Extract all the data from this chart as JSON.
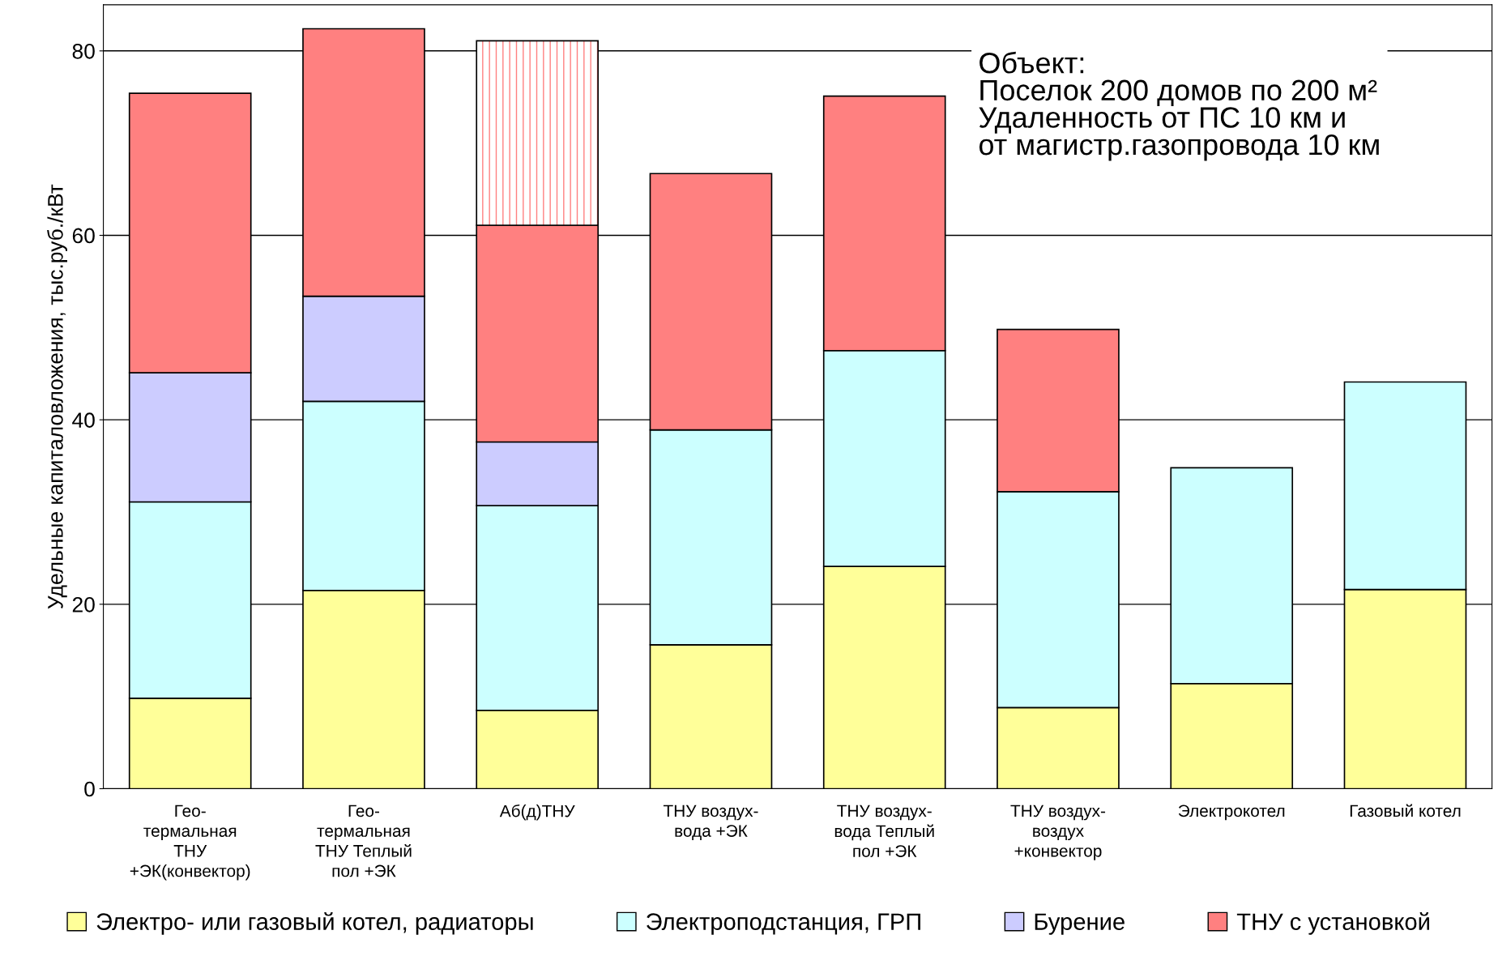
{
  "chart_data": {
    "type": "bar",
    "stacked": true,
    "ylabel": "Удельные капиталовложения, тыс.руб./кВт",
    "categories": [
      "Гео-\nтермальная\nТНУ\n+ЭК(конвектор)",
      "Гео-\nтермальная\nТНУ Теплый\nпол +ЭК",
      "Аб(д)ТНУ",
      "ТНУ воздух-\nвода +ЭК",
      "ТНУ воздух-\nвода Теплый\nпол +ЭК",
      "ТНУ воздух-\nвоздух\n+конвектор",
      "Электрокотел",
      "Газовый котел"
    ],
    "series": [
      {
        "name": "Электро- или газовый котел, радиаторы",
        "color": "#ffff99",
        "values": [
          9.8,
          21.5,
          8.5,
          15.6,
          24.1,
          8.8,
          11.4,
          21.6
        ]
      },
      {
        "name": "Электроподстанция, ГРП",
        "color": "#ccffff",
        "values": [
          21.3,
          20.5,
          22.2,
          23.3,
          23.4,
          23.4,
          23.4,
          22.5
        ]
      },
      {
        "name": "Бурение",
        "color": "#ccccff",
        "values": [
          14.0,
          11.4,
          6.9,
          null,
          null,
          null,
          null,
          null
        ]
      },
      {
        "name": "ТНУ с установкой",
        "color": "#ff8080",
        "values": [
          30.3,
          29.0,
          23.5,
          27.8,
          27.6,
          17.6,
          null,
          null
        ]
      },
      {
        "color": "#ff8080",
        "values": [
          null,
          null,
          20.0,
          null,
          null,
          null,
          null,
          null
        ]
      }
    ],
    "ylim": [
      0,
      85
    ],
    "yticks": [
      0,
      20,
      40,
      60,
      80
    ],
    "grid": "y",
    "legend": "bottom",
    "annotations": [
      "Объект:\nПоселок 200 домов по 200 м²\nУдаленность от ПС 10 км и\nот магистр.газопровода 10 км"
    ]
  }
}
